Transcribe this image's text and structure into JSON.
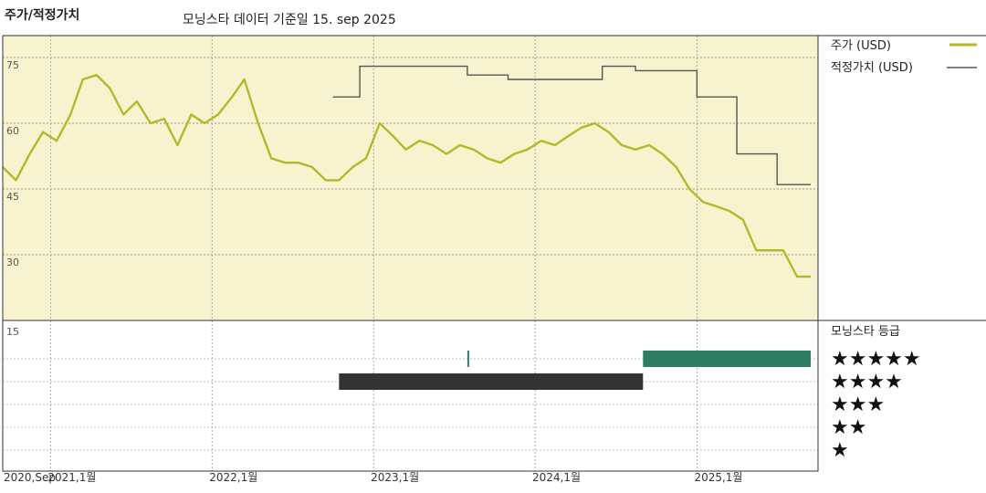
{
  "header": {
    "title": "주가/적정가치",
    "subtitle": "모닝스타 데이터 기준일 15. sep 2025"
  },
  "legend": {
    "price_label": "주가 (USD)",
    "fair_label": "적정가치 (USD)",
    "rating_title": "모닝스타 등급",
    "star_labels": [
      "★★★★★",
      "★★★★",
      "★★★",
      "★★",
      "★"
    ]
  },
  "colors": {
    "price_line": "#b5b82a",
    "fair_line": "#555555",
    "upper_bg": "#f7f3cf",
    "five_star": "#2e7d62",
    "four_star": "#333333"
  },
  "chart_data": {
    "type": "line",
    "title": "주가/적정가치",
    "x_tick_labels": [
      "2020,Sep",
      "2021,1월",
      "2022,1월",
      "2023,1월",
      "2024,1월",
      "2025,1월"
    ],
    "x_tick_dates": [
      "2020-09-15",
      "2021-01-01",
      "2022-01-01",
      "2023-01-01",
      "2024-01-01",
      "2025-01-01"
    ],
    "x_range": [
      "2020-09-15",
      "2025-09-15"
    ],
    "y_range": [
      15,
      80
    ],
    "y_ticks": [
      75,
      60,
      45,
      30
    ],
    "rating_axis_label": "15",
    "grid": true,
    "legend_position": "right",
    "series": [
      {
        "name": "주가 (USD)",
        "x": [
          "2020-09-15",
          "2020-10-15",
          "2020-11-15",
          "2020-12-15",
          "2021-01-15",
          "2021-02-15",
          "2021-03-15",
          "2021-04-15",
          "2021-05-15",
          "2021-06-15",
          "2021-07-15",
          "2021-08-15",
          "2021-09-15",
          "2021-10-15",
          "2021-11-15",
          "2021-12-15",
          "2022-01-15",
          "2022-02-15",
          "2022-03-15",
          "2022-04-15",
          "2022-05-15",
          "2022-06-15",
          "2022-07-15",
          "2022-08-15",
          "2022-09-15",
          "2022-10-15",
          "2022-11-15",
          "2022-12-15",
          "2023-01-15",
          "2023-02-15",
          "2023-03-15",
          "2023-04-15",
          "2023-05-15",
          "2023-06-15",
          "2023-07-15",
          "2023-08-15",
          "2023-09-15",
          "2023-10-15",
          "2023-11-15",
          "2023-12-15",
          "2024-01-15",
          "2024-02-15",
          "2024-03-15",
          "2024-04-15",
          "2024-05-15",
          "2024-06-15",
          "2024-07-15",
          "2024-08-15",
          "2024-09-15",
          "2024-10-15",
          "2024-11-15",
          "2024-12-15",
          "2025-01-15",
          "2025-02-15",
          "2025-03-15",
          "2025-04-15",
          "2025-05-15",
          "2025-06-15",
          "2025-07-15",
          "2025-08-15",
          "2025-09-15"
        ],
        "values": [
          50,
          47,
          53,
          58,
          56,
          62,
          70,
          71,
          68,
          62,
          65,
          60,
          61,
          55,
          62,
          60,
          62,
          66,
          70,
          60,
          52,
          51,
          51,
          50,
          47,
          47,
          50,
          52,
          60,
          57,
          54,
          56,
          55,
          53,
          55,
          54,
          52,
          51,
          53,
          54,
          56,
          55,
          57,
          59,
          60,
          58,
          55,
          54,
          55,
          53,
          50,
          45,
          42,
          41,
          40,
          38,
          31,
          31,
          31,
          25,
          25
        ]
      },
      {
        "name": "적정가치 (USD)",
        "x": [
          "2022-10-01",
          "2022-12-01",
          "2022-12-01",
          "2023-08-01",
          "2023-08-01",
          "2023-11-01",
          "2023-11-01",
          "2024-06-01",
          "2024-06-01",
          "2024-08-15",
          "2024-08-15",
          "2025-01-01",
          "2025-01-01",
          "2025-04-01",
          "2025-04-01",
          "2025-07-01",
          "2025-07-01",
          "2025-09-15"
        ],
        "values": [
          66,
          66,
          73,
          73,
          71,
          71,
          70,
          70,
          73,
          73,
          72,
          72,
          66,
          66,
          53,
          53,
          46,
          46
        ]
      }
    ],
    "rating_series": [
      {
        "stars": 5,
        "periods": [
          [
            "2023-08-01",
            "2023-08-05"
          ],
          [
            "2024-09-01",
            "2025-09-15"
          ]
        ]
      },
      {
        "stars": 4,
        "periods": [
          [
            "2022-10-15",
            "2024-09-01"
          ]
        ]
      }
    ]
  }
}
